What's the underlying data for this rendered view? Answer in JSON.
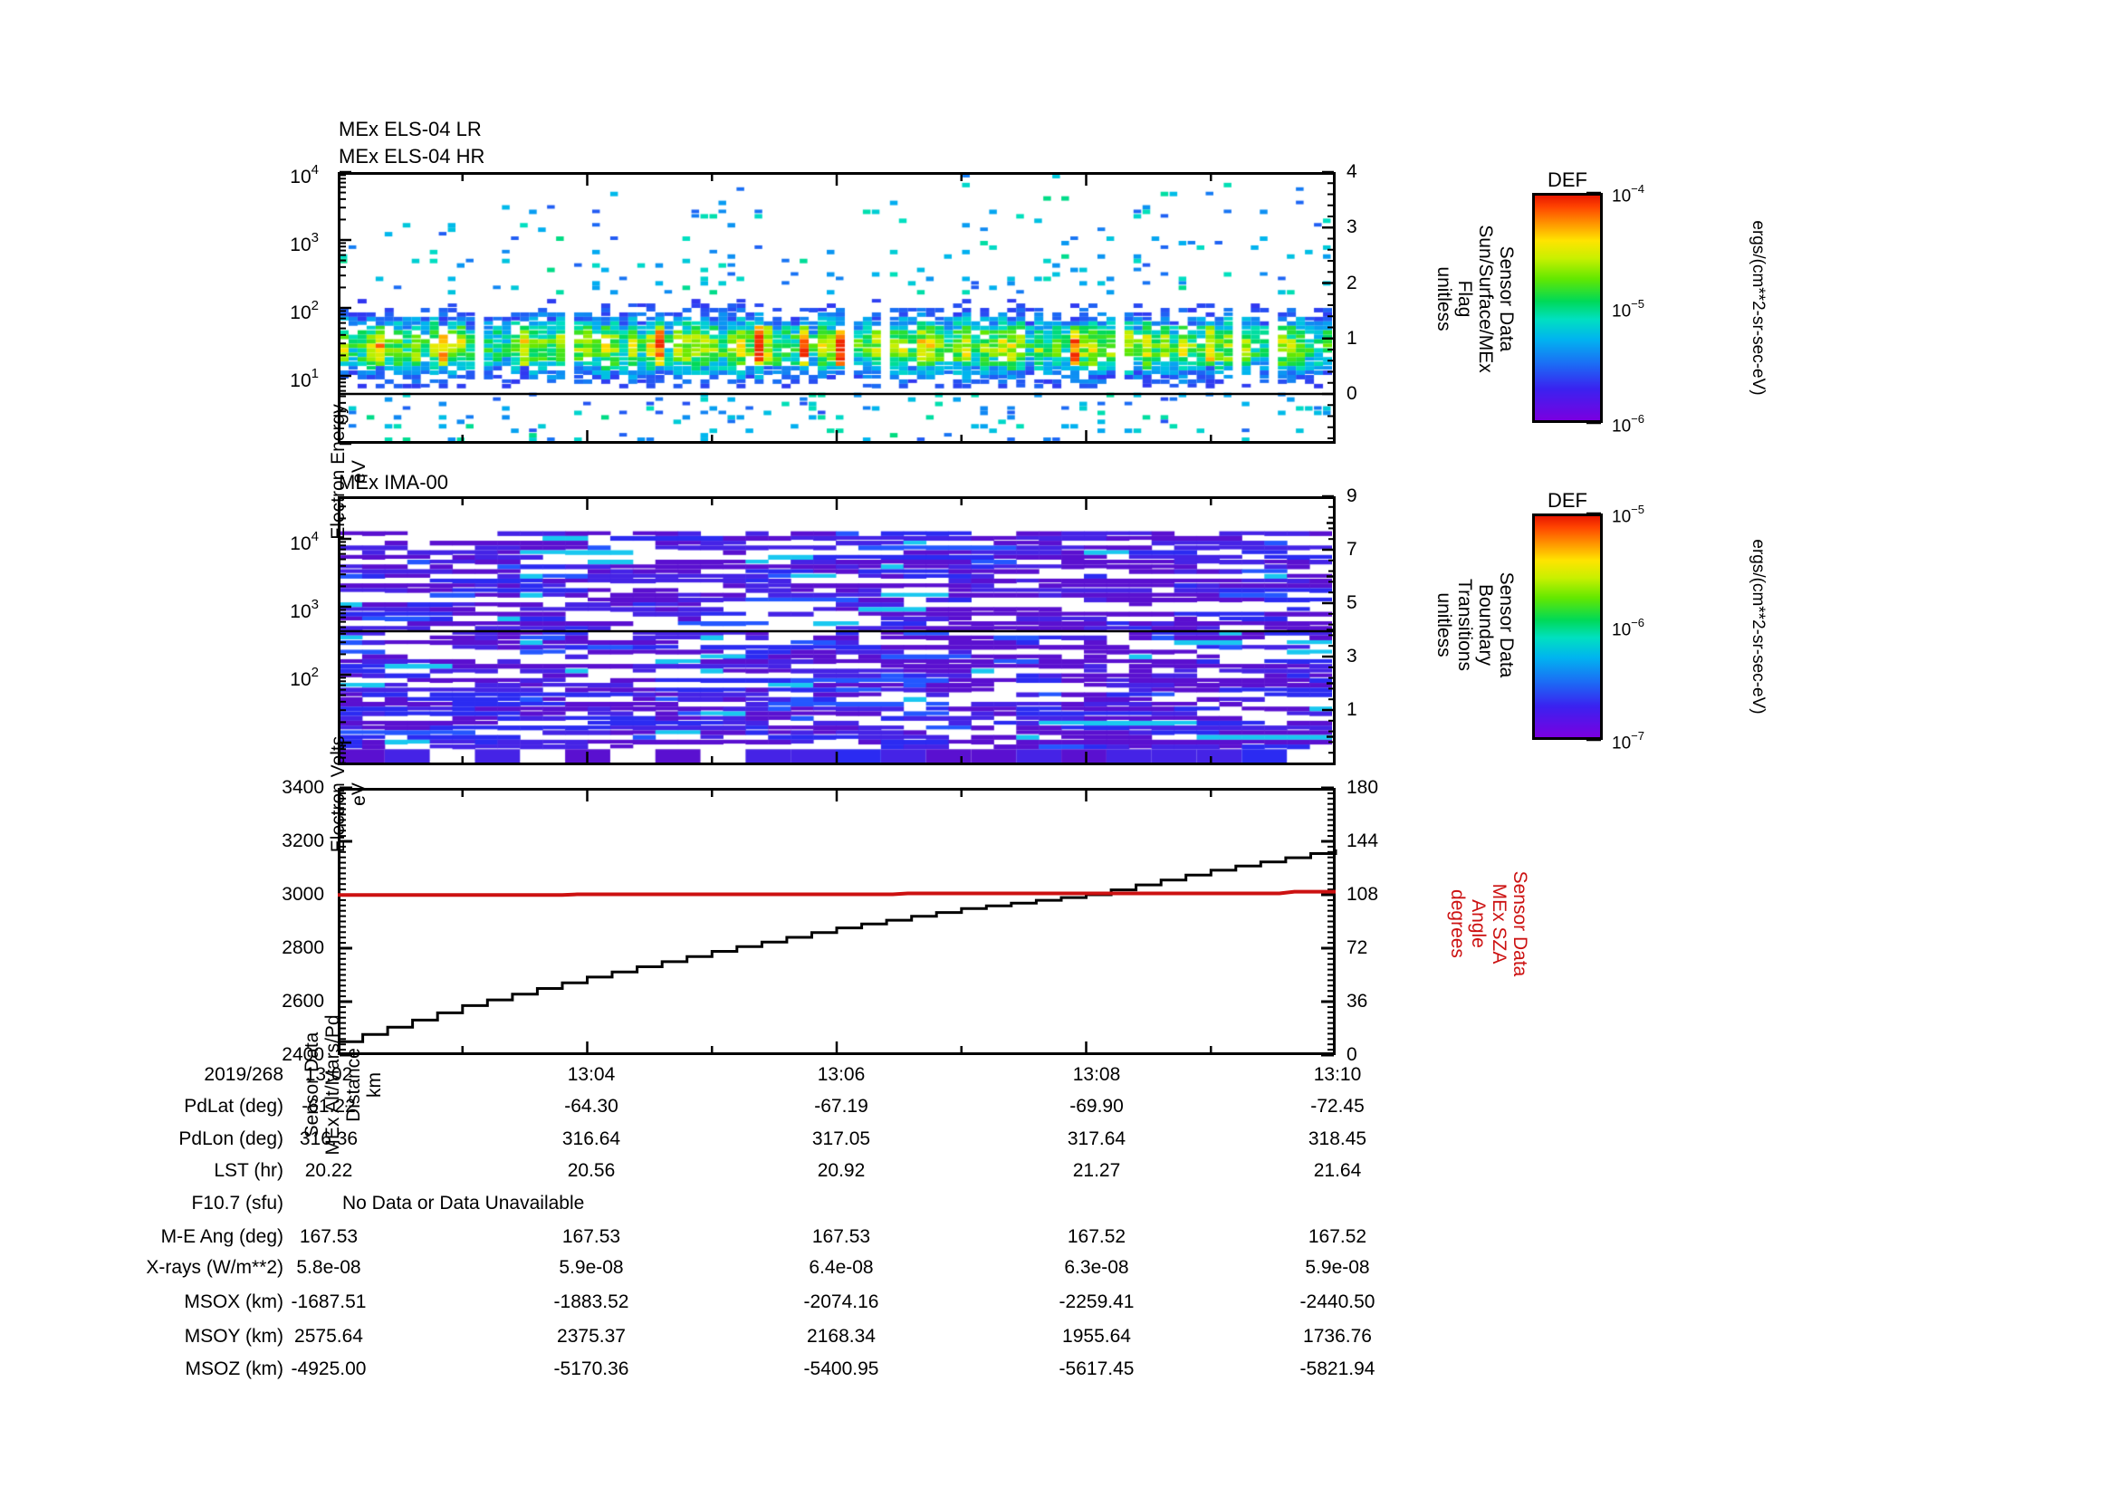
{
  "figure": {
    "background": "#ffffff",
    "black": "#000000",
    "accent_red": "#cc1111"
  },
  "panels": {
    "els": {
      "title": "MEx ELS-04 LR\nMEx ELS-04 HR",
      "ylabel": "Electron Energy\neV",
      "right_label": "Sensor Data\nSun/Surface/MEx\nFlag\nunitless",
      "y_decades": [
        4,
        3,
        2,
        1
      ],
      "right_ticks": [
        4,
        3,
        2,
        1,
        0
      ]
    },
    "ima": {
      "title": "MEx IMA-00",
      "ylabel": "Electron Volts\neV",
      "right_label": "Sensor Data\nBoundary\nTransitions\nunitless",
      "y_decades": [
        4,
        3,
        2
      ],
      "right_ticks": [
        9,
        7,
        5,
        3,
        1
      ]
    },
    "alt": {
      "ylabel": "Sensor Data\nMEx Alt/Mars/Pd\nDistance\nkm",
      "right_label": "Sensor Data\nMEx SZA\nAngle\ndegrees",
      "left_ticks": [
        3400,
        3200,
        3000,
        2800,
        2600,
        2400
      ],
      "right_ticks": [
        180,
        144,
        108,
        72,
        36,
        0
      ]
    }
  },
  "colorbars": [
    {
      "title": "DEF",
      "tick_exponents": [
        -4,
        -5,
        -6
      ],
      "unit": "ergs/(cm**2-sr-sec-eV)"
    },
    {
      "title": "DEF",
      "tick_exponents": [
        -5,
        -6,
        -7
      ],
      "unit": "ergs/(cm**2-sr-sec-eV)"
    }
  ],
  "table": {
    "date_label": "2019/268",
    "rows": [
      {
        "label": "2019/268",
        "values": [
          "13:02",
          "13:04",
          "13:06",
          "13:08",
          "13:10"
        ]
      },
      {
        "label": "PdLat (deg)",
        "values": [
          "-61.22",
          "-64.30",
          "-67.19",
          "-69.90",
          "-72.45"
        ]
      },
      {
        "label": "PdLon (deg)",
        "values": [
          "316.36",
          "316.64",
          "317.05",
          "317.64",
          "318.45"
        ]
      },
      {
        "label": "LST (hr)",
        "values": [
          "20.22",
          "20.56",
          "20.92",
          "21.27",
          "21.64"
        ]
      },
      {
        "label": "F10.7 (sfu)",
        "span_text": "No Data or Data Unavailable"
      },
      {
        "label": "M-E Ang (deg)",
        "values": [
          "167.53",
          "167.53",
          "167.53",
          "167.52",
          "167.52"
        ]
      },
      {
        "label": "X-rays (W/m**2)",
        "values": [
          "5.8e-08",
          "5.9e-08",
          "6.4e-08",
          "6.3e-08",
          "5.9e-08"
        ]
      },
      {
        "label": "MSOX (km)",
        "values": [
          "-1687.51",
          "-1883.52",
          "-2074.16",
          "-2259.41",
          "-2440.50"
        ]
      },
      {
        "label": "MSOY (km)",
        "values": [
          "2575.64",
          "2375.37",
          "2168.34",
          "1955.64",
          "1736.76"
        ]
      },
      {
        "label": "MSOZ (km)",
        "values": [
          "-4925.00",
          "-5170.36",
          "-5400.95",
          "-5617.45",
          "-5821.94"
        ]
      }
    ]
  },
  "chart_data": [
    {
      "type": "heatmap",
      "title": "MEx ELS-04 LR / MEx ELS-04 HR electron spectrogram",
      "x_ticks": [
        "13:02",
        "13:04",
        "13:06",
        "13:08",
        "13:10"
      ],
      "x_minor_minutes": 1,
      "ylabel": "Electron Energy (eV)",
      "y_scale": "log",
      "y_range": [
        1,
        10000
      ],
      "z_unit": "ergs/(cm**2-sr-sec-eV)",
      "z_range": [
        1e-06,
        0.0001
      ],
      "right_axis": {
        "label": "Sensor Data Sun/Surface/MEx Flag (unitless)",
        "range": [
          -1,
          4
        ],
        "overlay_line_value": 0
      },
      "structure": {
        "main_band_eV": [
          8,
          140
        ],
        "band_peak_eV": 26,
        "band_peak_flux": "1e-4.5 (green-yellow, orange hotspots)",
        "sparse_scatter_above_eV": [
          200,
          10000
        ],
        "sparse_scatter_below_flag": true,
        "vertical_data_gaps": "white gap columns roughly every 90 px"
      },
      "render": {
        "cols": 110,
        "rows": 60,
        "seed": 7,
        "colormap": [
          [
            0,
            "#7a00e0"
          ],
          [
            0.14,
            "#3a22f0"
          ],
          [
            0.25,
            "#1b6cf5"
          ],
          [
            0.36,
            "#00b4f0"
          ],
          [
            0.45,
            "#00e0c0"
          ],
          [
            0.53,
            "#00d957"
          ],
          [
            0.63,
            "#63e800"
          ],
          [
            0.72,
            "#c8f000"
          ],
          [
            0.8,
            "#ffe400"
          ],
          [
            0.88,
            "#ff9000"
          ],
          [
            0.95,
            "#ff4400"
          ],
          [
            1,
            "#e81800"
          ]
        ]
      }
    },
    {
      "type": "heatmap",
      "title": "MEx IMA-00 ion spectrogram",
      "x_ticks": [
        "13:02",
        "13:04",
        "13:06",
        "13:08",
        "13:10"
      ],
      "ylabel": "Electron Volts (eV)",
      "y_scale": "log",
      "y_range": [
        4,
        40000
      ],
      "z_unit": "ergs/(cm**2-sr-sec-eV)",
      "z_range": [
        1e-07,
        1e-05
      ],
      "right_axis": {
        "label": "Sensor Data Boundary Transitions (unitless)",
        "range": [
          -1,
          9
        ],
        "overlay_line_value": 4
      },
      "structure": {
        "fill": "blocky purple/blue-violet cells with occasional cyan streaks, white gaps",
        "empty_top_above_eV": 16000
      },
      "render": {
        "cols": 44,
        "rows": 56,
        "seed": 13,
        "palette": [
          "#5a10d0",
          "#4523e6",
          "#2b2bf2",
          "#2457ff",
          "#19c8f0"
        ]
      }
    },
    {
      "type": "line",
      "x_ticks": [
        "13:02",
        "13:04",
        "13:06",
        "13:08",
        "13:10"
      ],
      "ylim_left": [
        2400,
        3400
      ],
      "ylim_right": [
        0,
        180
      ],
      "series": [
        {
          "name": "MEx Alt/Mars/Pd Distance (km)",
          "axis": "left",
          "color": "#000000",
          "style": "stairs",
          "x_minutes": [
            0,
            1,
            2,
            3,
            4,
            5,
            6,
            7,
            8
          ],
          "values": [
            2450,
            2585,
            2692,
            2788,
            2876,
            2948,
            3000,
            3092,
            3170
          ]
        },
        {
          "name": "MEx SZA Angle (degrees)",
          "axis": "right",
          "color": "#cc1111",
          "style": "steps",
          "step_points": [
            [
              0,
              107.8
            ],
            [
              1.8,
              108.3
            ],
            [
              4.45,
              108.9
            ],
            [
              7.55,
              110.1
            ],
            [
              8,
              110.1
            ]
          ]
        }
      ]
    }
  ]
}
